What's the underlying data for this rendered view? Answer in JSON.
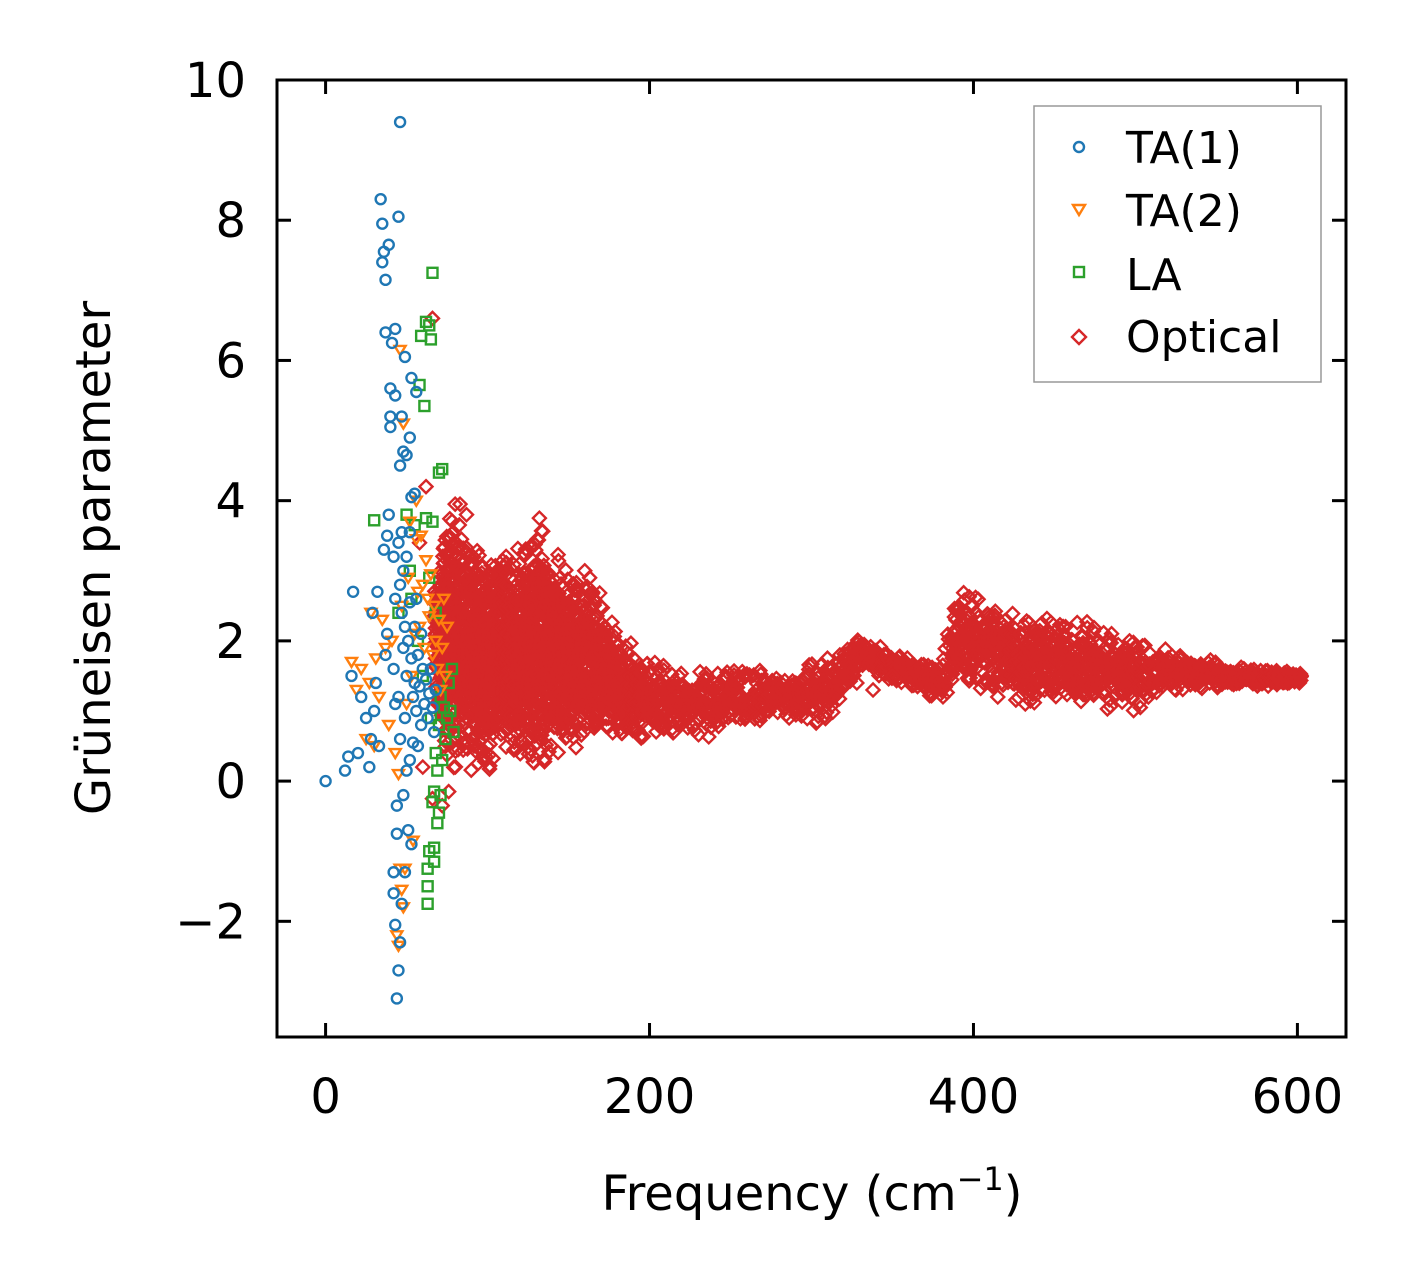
{
  "chart_data": {
    "type": "scatter",
    "title": "",
    "xlabel": "Frequency (cm",
    "xlabel_sup": "−1",
    "xlabel_close": ")",
    "ylabel": "Grüneisen parameter",
    "xlim": [
      -30,
      630
    ],
    "ylim": [
      -3.65,
      10.0
    ],
    "xticks": [
      0,
      200,
      400,
      600
    ],
    "xtick_labels": [
      "0",
      "200",
      "400",
      "600"
    ],
    "yticks": [
      -2,
      0,
      2,
      4,
      6,
      8,
      10
    ],
    "ytick_labels": [
      "−2",
      "0",
      "2",
      "4",
      "6",
      "8",
      "10"
    ],
    "grid": false,
    "legend_position": "top-right",
    "series": [
      {
        "name": "TA(1)",
        "marker": "circle",
        "color": "#1f77b4",
        "points": [
          [
            0,
            0.0
          ],
          [
            12,
            0.15
          ],
          [
            14,
            0.35
          ],
          [
            16,
            1.5
          ],
          [
            17,
            2.7
          ],
          [
            20,
            0.4
          ],
          [
            22,
            1.2
          ],
          [
            25,
            0.9
          ],
          [
            27,
            0.2
          ],
          [
            28,
            0.6
          ],
          [
            29,
            2.4
          ],
          [
            30,
            1.0
          ],
          [
            31,
            1.4
          ],
          [
            32,
            2.7
          ],
          [
            33,
            0.5
          ],
          [
            34,
            8.3
          ],
          [
            35,
            7.95
          ],
          [
            35,
            7.4
          ],
          [
            36,
            7.55
          ],
          [
            36,
            3.3
          ],
          [
            37,
            7.15
          ],
          [
            37,
            6.4
          ],
          [
            37,
            1.8
          ],
          [
            38,
            2.1
          ],
          [
            38,
            3.5
          ],
          [
            39,
            7.65
          ],
          [
            39,
            3.8
          ],
          [
            40,
            5.6
          ],
          [
            40,
            5.2
          ],
          [
            40,
            5.05
          ],
          [
            41,
            6.25
          ],
          [
            42,
            1.6
          ],
          [
            42,
            3.2
          ],
          [
            42,
            -1.3
          ],
          [
            42,
            -1.6
          ],
          [
            43,
            6.45
          ],
          [
            43,
            5.5
          ],
          [
            43,
            2.6
          ],
          [
            43,
            1.1
          ],
          [
            43,
            -2.05
          ],
          [
            44,
            -3.1
          ],
          [
            44,
            -0.75
          ],
          [
            44,
            -0.35
          ],
          [
            45,
            8.05
          ],
          [
            45,
            3.4
          ],
          [
            45,
            1.2
          ],
          [
            45,
            -2.7
          ],
          [
            46,
            9.4
          ],
          [
            46,
            4.5
          ],
          [
            46,
            2.8
          ],
          [
            46,
            0.6
          ],
          [
            46,
            -2.3
          ],
          [
            47,
            5.2
          ],
          [
            47,
            3.55
          ],
          [
            47,
            2.4
          ],
          [
            47,
            -1.75
          ],
          [
            48,
            4.7
          ],
          [
            48,
            3.0
          ],
          [
            48,
            1.9
          ],
          [
            48,
            -0.2
          ],
          [
            49,
            6.05
          ],
          [
            49,
            2.2
          ],
          [
            49,
            0.9
          ],
          [
            49,
            -1.3
          ],
          [
            50,
            4.65
          ],
          [
            50,
            3.2
          ],
          [
            50,
            1.5
          ],
          [
            50,
            0.15
          ],
          [
            51,
            2.0
          ],
          [
            51,
            -0.7
          ],
          [
            52,
            4.9
          ],
          [
            52,
            3.55
          ],
          [
            52,
            2.55
          ],
          [
            52,
            0.3
          ],
          [
            53,
            5.75
          ],
          [
            53,
            4.05
          ],
          [
            53,
            1.75
          ],
          [
            53,
            -0.9
          ],
          [
            54,
            1.2
          ],
          [
            54,
            0.55
          ],
          [
            55,
            4.1
          ],
          [
            55,
            2.2
          ],
          [
            55,
            1.4
          ],
          [
            56,
            5.55
          ],
          [
            56,
            2.6
          ],
          [
            56,
            1.0
          ],
          [
            57,
            1.8
          ],
          [
            57,
            0.5
          ],
          [
            58,
            1.35
          ],
          [
            59,
            2.1
          ],
          [
            59,
            0.8
          ],
          [
            60,
            1.6
          ],
          [
            61,
            1.1
          ],
          [
            62,
            1.45
          ],
          [
            63,
            0.9
          ],
          [
            64,
            1.25
          ],
          [
            65,
            1.6
          ],
          [
            66,
            1.05
          ],
          [
            67,
            0.7
          ],
          [
            68,
            1.3
          ]
        ]
      },
      {
        "name": "TA(2)",
        "marker": "triangle-down",
        "color": "#ff7f0e",
        "points": [
          [
            16,
            1.7
          ],
          [
            19,
            1.3
          ],
          [
            22,
            1.6
          ],
          [
            25,
            0.6
          ],
          [
            27,
            1.4
          ],
          [
            28,
            2.4
          ],
          [
            30,
            0.5
          ],
          [
            31,
            1.75
          ],
          [
            33,
            1.2
          ],
          [
            35,
            2.3
          ],
          [
            37,
            1.9
          ],
          [
            39,
            0.8
          ],
          [
            41,
            2.0
          ],
          [
            43,
            0.4
          ],
          [
            44,
            -2.2
          ],
          [
            45,
            -2.35
          ],
          [
            45,
            0.1
          ],
          [
            46,
            6.15
          ],
          [
            46,
            -1.25
          ],
          [
            47,
            -1.55
          ],
          [
            47,
            2.5
          ],
          [
            48,
            5.1
          ],
          [
            48,
            -1.8
          ],
          [
            49,
            -1.25
          ],
          [
            50,
            1.1
          ],
          [
            51,
            2.9
          ],
          [
            52,
            3.7
          ],
          [
            53,
            1.5
          ],
          [
            54,
            -0.85
          ],
          [
            55,
            2.1
          ],
          [
            56,
            4.0
          ],
          [
            56,
            3.45
          ],
          [
            57,
            2.7
          ],
          [
            58,
            2.2
          ],
          [
            59,
            3.5
          ],
          [
            60,
            2.8
          ],
          [
            61,
            1.9
          ],
          [
            62,
            3.15
          ],
          [
            63,
            2.6
          ],
          [
            64,
            2.35
          ],
          [
            65,
            2.95
          ],
          [
            66,
            1.8
          ],
          [
            67,
            2.5
          ],
          [
            68,
            2.0
          ],
          [
            69,
            1.6
          ],
          [
            70,
            2.3
          ],
          [
            71,
            1.3
          ],
          [
            72,
            1.9
          ],
          [
            73,
            2.6
          ],
          [
            74,
            1.5
          ],
          [
            75,
            2.2
          ]
        ]
      },
      {
        "name": "LA",
        "marker": "square",
        "color": "#2ca02c",
        "points": [
          [
            30,
            3.72
          ],
          [
            45,
            2.4
          ],
          [
            50,
            3.8
          ],
          [
            52,
            3.0
          ],
          [
            53,
            2.6
          ],
          [
            55,
            3.65
          ],
          [
            57,
            2.0
          ],
          [
            58,
            5.65
          ],
          [
            59,
            6.35
          ],
          [
            60,
            1.5
          ],
          [
            61,
            5.35
          ],
          [
            62,
            6.55
          ],
          [
            62,
            3.75
          ],
          [
            63,
            -1.75
          ],
          [
            63,
            -1.5
          ],
          [
            63,
            -1.25
          ],
          [
            64,
            6.5
          ],
          [
            64,
            -1.0
          ],
          [
            64,
            2.9
          ],
          [
            65,
            6.3
          ],
          [
            65,
            0.9
          ],
          [
            66,
            7.25
          ],
          [
            66,
            3.7
          ],
          [
            66,
            -0.3
          ],
          [
            67,
            -0.15
          ],
          [
            67,
            -1.15
          ],
          [
            67,
            -0.95
          ],
          [
            68,
            2.4
          ],
          [
            68,
            0.4
          ],
          [
            69,
            -0.6
          ],
          [
            69,
            0.15
          ],
          [
            70,
            4.4
          ],
          [
            70,
            -0.45
          ],
          [
            70,
            0.8
          ],
          [
            71,
            1.2
          ],
          [
            71,
            -0.2
          ],
          [
            72,
            4.45
          ],
          [
            72,
            0.3
          ],
          [
            73,
            1.05
          ],
          [
            74,
            0.6
          ],
          [
            75,
            0.9
          ],
          [
            76,
            1.4
          ],
          [
            77,
            1.0
          ],
          [
            78,
            1.6
          ],
          [
            79,
            0.7
          ]
        ]
      }
    ],
    "optical": {
      "name": "Optical",
      "marker": "diamond",
      "color": "#d62728",
      "band_low": [
        [
          68,
          0.95
        ],
        [
          75,
          0.15
        ],
        [
          85,
          0.2
        ],
        [
          95,
          0.05
        ],
        [
          110,
          0.1
        ],
        [
          130,
          0.15
        ],
        [
          150,
          0.4
        ],
        [
          175,
          0.55
        ],
        [
          200,
          0.6
        ],
        [
          230,
          0.55
        ],
        [
          260,
          0.75
        ],
        [
          290,
          0.85
        ],
        [
          310,
          0.8
        ],
        [
          330,
          1.6
        ],
        [
          360,
          1.3
        ],
        [
          380,
          1.1
        ],
        [
          395,
          1.35
        ],
        [
          420,
          1.05
        ],
        [
          460,
          1.05
        ],
        [
          500,
          0.95
        ],
        [
          515,
          1.25
        ],
        [
          560,
          1.3
        ],
        [
          603,
          1.4
        ]
      ],
      "band_high": [
        [
          68,
          3.0
        ],
        [
          75,
          4.0
        ],
        [
          85,
          3.7
        ],
        [
          100,
          3.3
        ],
        [
          115,
          3.4
        ],
        [
          130,
          3.8
        ],
        [
          150,
          3.1
        ],
        [
          165,
          3.0
        ],
        [
          180,
          2.2
        ],
        [
          200,
          1.75
        ],
        [
          230,
          1.6
        ],
        [
          260,
          1.65
        ],
        [
          290,
          1.55
        ],
        [
          310,
          1.85
        ],
        [
          330,
          2.05
        ],
        [
          360,
          1.8
        ],
        [
          380,
          1.7
        ],
        [
          390,
          2.8
        ],
        [
          420,
          2.55
        ],
        [
          460,
          2.35
        ],
        [
          500,
          2.05
        ],
        [
          515,
          1.95
        ],
        [
          560,
          1.65
        ],
        [
          603,
          1.55
        ]
      ],
      "extra_points": [
        [
          66,
          6.6
        ],
        [
          62,
          4.2
        ],
        [
          58,
          3.4
        ],
        [
          60,
          0.2
        ],
        [
          66,
          -0.25
        ],
        [
          72,
          -0.35
        ],
        [
          76,
          -0.15
        ],
        [
          80,
          3.95
        ],
        [
          83,
          3.95
        ],
        [
          87,
          3.8
        ],
        [
          132,
          3.75
        ],
        [
          160,
          3.0
        ],
        [
          163,
          2.9
        ],
        [
          328,
          1.4
        ],
        [
          338,
          1.3
        ],
        [
          350,
          1.5
        ],
        [
          415,
          1.2
        ],
        [
          432,
          1.1
        ],
        [
          503,
          1.05
        ],
        [
          508,
          1.2
        ],
        [
          525,
          1.3
        ],
        [
          600,
          1.45
        ]
      ]
    }
  }
}
